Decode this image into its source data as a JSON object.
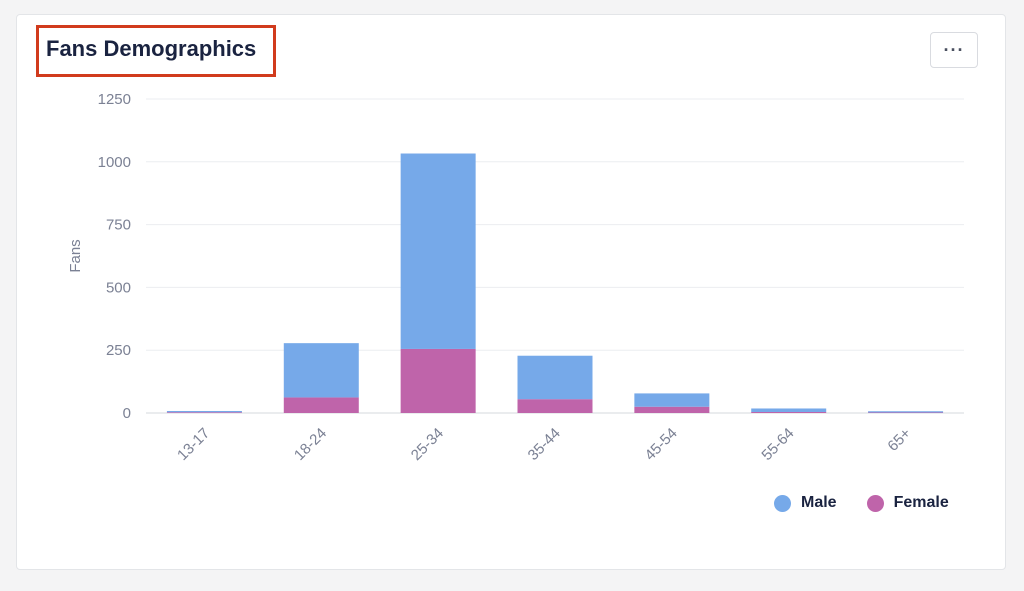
{
  "header": {
    "title": "Fans Demographics",
    "more_label": "···"
  },
  "chart_data": {
    "type": "bar",
    "stacked": true,
    "title": "Fans Demographics",
    "xlabel": "",
    "ylabel": "Fans",
    "ylim": [
      0,
      1250
    ],
    "yticks": [
      0,
      250,
      500,
      750,
      1000,
      1250
    ],
    "categories": [
      "13-17",
      "18-24",
      "25-34",
      "35-44",
      "45-54",
      "55-64",
      "65+"
    ],
    "series": [
      {
        "name": "Female",
        "color": "#bf64aa",
        "values": [
          3,
          62,
          255,
          55,
          25,
          4,
          2
        ]
      },
      {
        "name": "Male",
        "color": "#76a9e9",
        "values": [
          5,
          216,
          778,
          173,
          53,
          14,
          5
        ]
      }
    ],
    "grid": true,
    "legend": "bottom-right"
  },
  "legend": [
    {
      "label": "Male",
      "color": "#76a9e9"
    },
    {
      "label": "Female",
      "color": "#bf64aa"
    }
  ]
}
